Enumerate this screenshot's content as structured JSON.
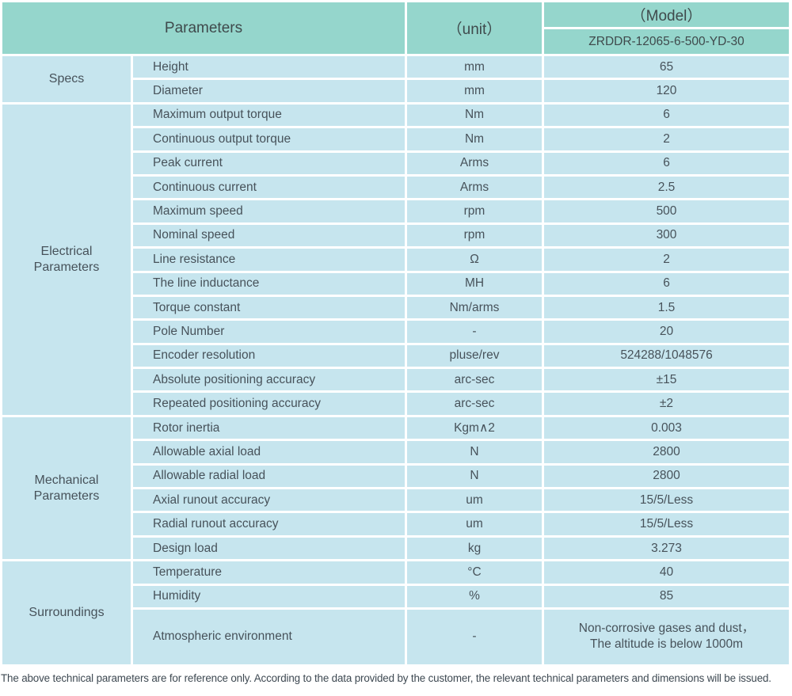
{
  "table": {
    "header": {
      "parameters": "Parameters",
      "unit": "（unit）",
      "model": "（Model）",
      "model_value": "ZRDDR-12065-6-500-YD-30"
    },
    "sections": [
      {
        "label": "Specs",
        "rows": [
          {
            "param": "Height",
            "unit": "mm",
            "value": "65"
          },
          {
            "param": "Diameter",
            "unit": "mm",
            "value": "120"
          }
        ]
      },
      {
        "label": "Electrical Parameters",
        "rows": [
          {
            "param": "Maximum output torque",
            "unit": "Nm",
            "value": "6"
          },
          {
            "param": "Continuous output torque",
            "unit": "Nm",
            "value": "2"
          },
          {
            "param": "Peak current",
            "unit": "Arms",
            "value": "6"
          },
          {
            "param": "Continuous current",
            "unit": "Arms",
            "value": "2.5"
          },
          {
            "param": "Maximum speed",
            "unit": "rpm",
            "value": "500"
          },
          {
            "param": "Nominal speed",
            "unit": "rpm",
            "value": "300"
          },
          {
            "param": "Line resistance",
            "unit": "Ω",
            "value": "2"
          },
          {
            "param": "The line inductance",
            "unit": "MH",
            "value": "6"
          },
          {
            "param": "Torque constant",
            "unit": "Nm/arms",
            "value": "1.5"
          },
          {
            "param": "Pole Number",
            "unit": "-",
            "value": "20"
          },
          {
            "param": "Encoder resolution",
            "unit": "pluse/rev",
            "value": "524288/1048576"
          },
          {
            "param": "Absolute positioning accuracy",
            "unit": "arc-sec",
            "value": "±15"
          },
          {
            "param": "Repeated positioning accuracy",
            "unit": "arc-sec",
            "value": "±2"
          }
        ]
      },
      {
        "label": "Mechanical Parameters",
        "rows": [
          {
            "param": "Rotor inertia",
            "unit": "Kgm∧2",
            "value": "0.003"
          },
          {
            "param": "Allowable axial load",
            "unit": "N",
            "value": "2800"
          },
          {
            "param": "Allowable radial load",
            "unit": "N",
            "value": "2800"
          },
          {
            "param": "Axial runout accuracy",
            "unit": "um",
            "value": "15/5/Less"
          },
          {
            "param": "Radial runout accuracy",
            "unit": "um",
            "value": "15/5/Less"
          },
          {
            "param": "Design load",
            "unit": "kg",
            "value": "3.273"
          }
        ]
      },
      {
        "label": "Surroundings",
        "rows": [
          {
            "param": "Temperature",
            "unit": "°C",
            "value": "40"
          },
          {
            "param": "Humidity",
            "unit": "%",
            "value": "85"
          },
          {
            "param": "Atmospheric environment",
            "unit": "-",
            "value_lines": [
              "Non-corrosive gases and dust，",
              "The altitude is below 1000m"
            ]
          }
        ]
      }
    ],
    "colors": {
      "header_bg": "#95d6cc",
      "row_bg": "#c6e5ee",
      "gridline": "#ffffff",
      "text": "#47525a"
    }
  },
  "footer": {
    "note": "The above technical parameters are for reference only. According to the data provided by the customer, the relevant technical parameters and dimensions will be issued."
  }
}
